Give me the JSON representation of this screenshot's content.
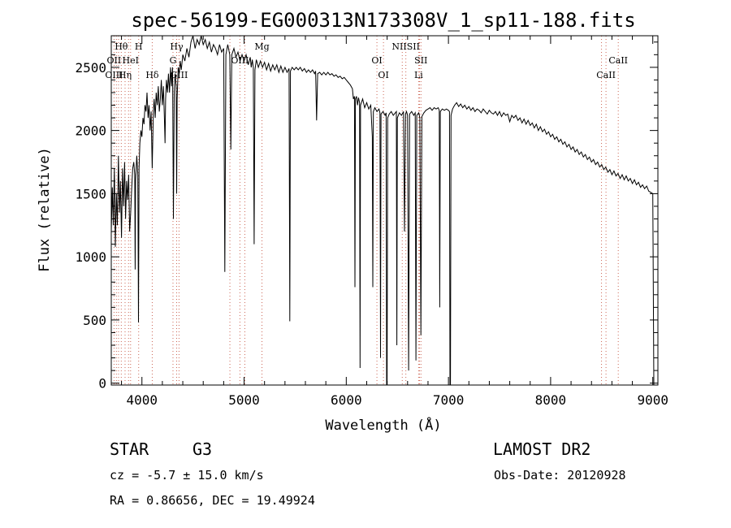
{
  "chart_data": {
    "type": "line",
    "title": "spec-56199-EG000313N173308V_1_sp11-188.fits",
    "xlabel": "Wavelength (Å)",
    "ylabel": "Flux (relative)",
    "xlim": [
      3700,
      9050
    ],
    "ylim": [
      -15,
      2750
    ],
    "xticks": [
      4000,
      5000,
      6000,
      7000,
      8000,
      9000
    ],
    "yticks": [
      0,
      500,
      1000,
      1500,
      2000,
      2500
    ],
    "line_color": "#000000",
    "marker_color": "#cc6655",
    "spectrum": [
      [
        3700,
        1200
      ],
      [
        3710,
        1550
      ],
      [
        3720,
        1250
      ],
      [
        3730,
        1700
      ],
      [
        3740,
        1080
      ],
      [
        3750,
        1500
      ],
      [
        3760,
        1250
      ],
      [
        3770,
        1800
      ],
      [
        3780,
        1350
      ],
      [
        3790,
        1600
      ],
      [
        3800,
        1150
      ],
      [
        3810,
        1700
      ],
      [
        3820,
        1400
      ],
      [
        3830,
        1750
      ],
      [
        3840,
        1300
      ],
      [
        3850,
        1600
      ],
      [
        3860,
        1450
      ],
      [
        3870,
        1650
      ],
      [
        3880,
        1200
      ],
      [
        3890,
        1350
      ],
      [
        3900,
        1550
      ],
      [
        3910,
        1700
      ],
      [
        3920,
        1750
      ],
      [
        3930,
        1650
      ],
      [
        3934,
        900
      ],
      [
        3938,
        1600
      ],
      [
        3950,
        1800
      ],
      [
        3960,
        1650
      ],
      [
        3966,
        480
      ],
      [
        3972,
        1700
      ],
      [
        3980,
        1900
      ],
      [
        3990,
        2000
      ],
      [
        4000,
        1950
      ],
      [
        4010,
        2100
      ],
      [
        4020,
        2050
      ],
      [
        4030,
        2200
      ],
      [
        4040,
        2150
      ],
      [
        4050,
        2300
      ],
      [
        4060,
        2100
      ],
      [
        4070,
        2200
      ],
      [
        4080,
        2000
      ],
      [
        4090,
        2150
      ],
      [
        4101,
        1700
      ],
      [
        4112,
        2150
      ],
      [
        4120,
        2250
      ],
      [
        4130,
        2100
      ],
      [
        4140,
        2300
      ],
      [
        4150,
        2200
      ],
      [
        4160,
        2350
      ],
      [
        4170,
        2150
      ],
      [
        4180,
        2250
      ],
      [
        4190,
        2400
      ],
      [
        4200,
        2200
      ],
      [
        4210,
        2350
      ],
      [
        4220,
        2100
      ],
      [
        4226,
        1900
      ],
      [
        4232,
        2250
      ],
      [
        4240,
        2400
      ],
      [
        4250,
        2300
      ],
      [
        4260,
        2450
      ],
      [
        4270,
        2300
      ],
      [
        4280,
        2500
      ],
      [
        4290,
        2350
      ],
      [
        4300,
        2500
      ],
      [
        4308,
        1300
      ],
      [
        4316,
        2300
      ],
      [
        4325,
        2450
      ],
      [
        4335,
        2350
      ],
      [
        4340,
        1500
      ],
      [
        4345,
        2250
      ],
      [
        4355,
        2500
      ],
      [
        4365,
        2450
      ],
      [
        4375,
        2550
      ],
      [
        4385,
        2480
      ],
      [
        4400,
        2600
      ],
      [
        4420,
        2550
      ],
      [
        4440,
        2650
      ],
      [
        4460,
        2580
      ],
      [
        4480,
        2700
      ],
      [
        4500,
        2750
      ],
      [
        4520,
        2650
      ],
      [
        4540,
        2720
      ],
      [
        4560,
        2680
      ],
      [
        4580,
        2750
      ],
      [
        4600,
        2680
      ],
      [
        4620,
        2720
      ],
      [
        4640,
        2650
      ],
      [
        4660,
        2700
      ],
      [
        4680,
        2620
      ],
      [
        4700,
        2680
      ],
      [
        4720,
        2650
      ],
      [
        4740,
        2600
      ],
      [
        4760,
        2680
      ],
      [
        4780,
        2620
      ],
      [
        4800,
        2650
      ],
      [
        4811,
        880
      ],
      [
        4822,
        2600
      ],
      [
        4840,
        2680
      ],
      [
        4860,
        2600
      ],
      [
        4870,
        1850
      ],
      [
        4880,
        2600
      ],
      [
        4900,
        2650
      ],
      [
        4920,
        2580
      ],
      [
        4940,
        2620
      ],
      [
        4960,
        2550
      ],
      [
        4980,
        2600
      ],
      [
        5000,
        2550
      ],
      [
        5020,
        2600
      ],
      [
        5040,
        2520
      ],
      [
        5060,
        2580
      ],
      [
        5070,
        2500
      ],
      [
        5080,
        2560
      ],
      [
        5090,
        2500
      ],
      [
        5098,
        1100
      ],
      [
        5106,
        2480
      ],
      [
        5120,
        2560
      ],
      [
        5140,
        2500
      ],
      [
        5160,
        2550
      ],
      [
        5180,
        2500
      ],
      [
        5200,
        2540
      ],
      [
        5220,
        2480
      ],
      [
        5240,
        2530
      ],
      [
        5260,
        2470
      ],
      [
        5280,
        2520
      ],
      [
        5300,
        2480
      ],
      [
        5320,
        2520
      ],
      [
        5340,
        2460
      ],
      [
        5360,
        2510
      ],
      [
        5380,
        2460
      ],
      [
        5400,
        2500
      ],
      [
        5420,
        2460
      ],
      [
        5440,
        2490
      ],
      [
        5447,
        490
      ],
      [
        5454,
        2470
      ],
      [
        5470,
        2500
      ],
      [
        5490,
        2480
      ],
      [
        5510,
        2500
      ],
      [
        5530,
        2480
      ],
      [
        5550,
        2500
      ],
      [
        5570,
        2470
      ],
      [
        5590,
        2490
      ],
      [
        5610,
        2460
      ],
      [
        5630,
        2480
      ],
      [
        5650,
        2460
      ],
      [
        5670,
        2480
      ],
      [
        5690,
        2450
      ],
      [
        5700,
        2470
      ],
      [
        5710,
        2080
      ],
      [
        5720,
        2450
      ],
      [
        5740,
        2460
      ],
      [
        5760,
        2440
      ],
      [
        5780,
        2460
      ],
      [
        5800,
        2440
      ],
      [
        5820,
        2460
      ],
      [
        5840,
        2440
      ],
      [
        5860,
        2450
      ],
      [
        5880,
        2430
      ],
      [
        5900,
        2440
      ],
      [
        5920,
        2420
      ],
      [
        5940,
        2430
      ],
      [
        5960,
        2410
      ],
      [
        5980,
        2420
      ],
      [
        6000,
        2400
      ],
      [
        6020,
        2380
      ],
      [
        6040,
        2360
      ],
      [
        6060,
        2330
      ],
      [
        6070,
        2250
      ],
      [
        6080,
        2270
      ],
      [
        6085,
        760
      ],
      [
        6090,
        2250
      ],
      [
        6100,
        2270
      ],
      [
        6110,
        2200
      ],
      [
        6120,
        2260
      ],
      [
        6130,
        2220
      ],
      [
        6135,
        120
      ],
      [
        6140,
        2200
      ],
      [
        6160,
        2250
      ],
      [
        6180,
        2180
      ],
      [
        6200,
        2220
      ],
      [
        6220,
        2170
      ],
      [
        6240,
        2200
      ],
      [
        6255,
        1950
      ],
      [
        6260,
        760
      ],
      [
        6265,
        2150
      ],
      [
        6280,
        2180
      ],
      [
        6300,
        2150
      ],
      [
        6320,
        2170
      ],
      [
        6330,
        2140
      ],
      [
        6335,
        200
      ],
      [
        6340,
        2130
      ],
      [
        6360,
        2150
      ],
      [
        6380,
        2120
      ],
      [
        6390,
        2140
      ],
      [
        6395,
        -200
      ],
      [
        6400,
        -200
      ],
      [
        6405,
        2100
      ],
      [
        6420,
        2130
      ],
      [
        6440,
        2150
      ],
      [
        6460,
        2120
      ],
      [
        6480,
        2140
      ],
      [
        6490,
        2150
      ],
      [
        6495,
        300
      ],
      [
        6500,
        2100
      ],
      [
        6520,
        2140
      ],
      [
        6540,
        2120
      ],
      [
        6560,
        2150
      ],
      [
        6570,
        1200
      ],
      [
        6580,
        2130
      ],
      [
        6590,
        2150
      ],
      [
        6600,
        2120
      ],
      [
        6610,
        100
      ],
      [
        6620,
        2130
      ],
      [
        6640,
        2150
      ],
      [
        6660,
        2120
      ],
      [
        6675,
        2140
      ],
      [
        6682,
        180
      ],
      [
        6690,
        2120
      ],
      [
        6710,
        2140
      ],
      [
        6720,
        2100
      ],
      [
        6730,
        380
      ],
      [
        6740,
        2110
      ],
      [
        6760,
        2140
      ],
      [
        6780,
        2160
      ],
      [
        6800,
        2170
      ],
      [
        6820,
        2180
      ],
      [
        6840,
        2160
      ],
      [
        6860,
        2180
      ],
      [
        6880,
        2170
      ],
      [
        6900,
        2180
      ],
      [
        6910,
        2160
      ],
      [
        6915,
        600
      ],
      [
        6920,
        2150
      ],
      [
        6940,
        2170
      ],
      [
        6960,
        2160
      ],
      [
        6980,
        2170
      ],
      [
        7000,
        2160
      ],
      [
        7010,
        2150
      ],
      [
        7015,
        -200
      ],
      [
        7020,
        -200
      ],
      [
        7025,
        2120
      ],
      [
        7040,
        2170
      ],
      [
        7060,
        2200
      ],
      [
        7080,
        2220
      ],
      [
        7100,
        2190
      ],
      [
        7120,
        2210
      ],
      [
        7140,
        2180
      ],
      [
        7160,
        2200
      ],
      [
        7180,
        2170
      ],
      [
        7200,
        2190
      ],
      [
        7220,
        2160
      ],
      [
        7240,
        2180
      ],
      [
        7260,
        2150
      ],
      [
        7280,
        2170
      ],
      [
        7300,
        2160
      ],
      [
        7320,
        2140
      ],
      [
        7340,
        2170
      ],
      [
        7360,
        2150
      ],
      [
        7380,
        2130
      ],
      [
        7400,
        2160
      ],
      [
        7420,
        2140
      ],
      [
        7440,
        2130
      ],
      [
        7460,
        2150
      ],
      [
        7480,
        2120
      ],
      [
        7500,
        2150
      ],
      [
        7520,
        2110
      ],
      [
        7540,
        2140
      ],
      [
        7560,
        2120
      ],
      [
        7580,
        2130
      ],
      [
        7600,
        2070
      ],
      [
        7620,
        2120
      ],
      [
        7640,
        2100
      ],
      [
        7660,
        2120
      ],
      [
        7680,
        2080
      ],
      [
        7700,
        2100
      ],
      [
        7720,
        2060
      ],
      [
        7740,
        2090
      ],
      [
        7760,
        2050
      ],
      [
        7780,
        2080
      ],
      [
        7800,
        2040
      ],
      [
        7820,
        2060
      ],
      [
        7840,
        2020
      ],
      [
        7860,
        2050
      ],
      [
        7880,
        2000
      ],
      [
        7900,
        2030
      ],
      [
        7920,
        1990
      ],
      [
        7940,
        2010
      ],
      [
        7960,
        1970
      ],
      [
        7980,
        1990
      ],
      [
        8000,
        1950
      ],
      [
        8020,
        1970
      ],
      [
        8040,
        1930
      ],
      [
        8060,
        1950
      ],
      [
        8080,
        1910
      ],
      [
        8100,
        1930
      ],
      [
        8120,
        1890
      ],
      [
        8140,
        1910
      ],
      [
        8160,
        1870
      ],
      [
        8180,
        1890
      ],
      [
        8200,
        1850
      ],
      [
        8220,
        1870
      ],
      [
        8240,
        1830
      ],
      [
        8260,
        1850
      ],
      [
        8280,
        1810
      ],
      [
        8300,
        1830
      ],
      [
        8320,
        1790
      ],
      [
        8340,
        1810
      ],
      [
        8360,
        1770
      ],
      [
        8380,
        1790
      ],
      [
        8400,
        1750
      ],
      [
        8420,
        1770
      ],
      [
        8440,
        1730
      ],
      [
        8460,
        1750
      ],
      [
        8480,
        1710
      ],
      [
        8500,
        1730
      ],
      [
        8520,
        1690
      ],
      [
        8540,
        1710
      ],
      [
        8560,
        1670
      ],
      [
        8580,
        1690
      ],
      [
        8600,
        1650
      ],
      [
        8620,
        1680
      ],
      [
        8640,
        1640
      ],
      [
        8660,
        1660
      ],
      [
        8680,
        1620
      ],
      [
        8700,
        1650
      ],
      [
        8720,
        1610
      ],
      [
        8740,
        1640
      ],
      [
        8760,
        1600
      ],
      [
        8780,
        1620
      ],
      [
        8800,
        1580
      ],
      [
        8820,
        1610
      ],
      [
        8840,
        1570
      ],
      [
        8860,
        1590
      ],
      [
        8880,
        1550
      ],
      [
        8900,
        1570
      ],
      [
        8920,
        1540
      ],
      [
        8940,
        1560
      ],
      [
        8960,
        1520
      ],
      [
        8980,
        1510
      ],
      [
        9000,
        1500
      ],
      [
        9010,
        -100
      ]
    ],
    "lines": [
      {
        "label": "Hθ",
        "w": 3798,
        "row": 0
      },
      {
        "label": "OII",
        "w": 3727,
        "row": 1
      },
      {
        "label": "OIII",
        "w": 3727,
        "row": 2
      },
      {
        "label": "Hη",
        "w": 3835,
        "row": 2
      },
      {
        "label": "H",
        "w": 3968,
        "row": 0
      },
      {
        "label": "HeI",
        "w": 3889,
        "row": 1
      },
      {
        "label": "Hδ",
        "w": 4101,
        "row": 2
      },
      {
        "label": "Hγ",
        "w": 4340,
        "row": 0
      },
      {
        "label": "G",
        "w": 4304,
        "row": 1
      },
      {
        "label": "GIII",
        "w": 4363,
        "row": 2
      },
      {
        "label": "OIII",
        "w": 4959,
        "row": 1
      },
      {
        "label": "Mg",
        "w": 5175,
        "row": 0
      },
      {
        "label": "OI",
        "w": 6300,
        "row": 1
      },
      {
        "label": "OI",
        "w": 6364,
        "row": 2
      },
      {
        "label": "NIISII",
        "w": 6583,
        "row": 0
      },
      {
        "label": "SII",
        "w": 6731,
        "row": 1
      },
      {
        "label": "Li",
        "w": 6708,
        "row": 2
      },
      {
        "label": "CaII",
        "w": 8542,
        "row": 2
      },
      {
        "label": "CaII",
        "w": 8662,
        "row": 1
      }
    ],
    "marker_waves": [
      3727,
      3750,
      3771,
      3798,
      3835,
      3869,
      3889,
      3968,
      4101,
      4304,
      4340,
      4363,
      4861,
      4959,
      5007,
      5175,
      6300,
      6364,
      6548,
      6583,
      6708,
      6717,
      6731,
      8498,
      8542,
      8662
    ]
  },
  "info": {
    "object": "STAR",
    "subclass": "G3",
    "survey": "LAMOST DR2",
    "cz": "cz = -5.7 ± 15.0 km/s",
    "obs_date": "Obs-Date: 20120928",
    "coords": "RA =    0.86656, DEC =   19.49924"
  }
}
